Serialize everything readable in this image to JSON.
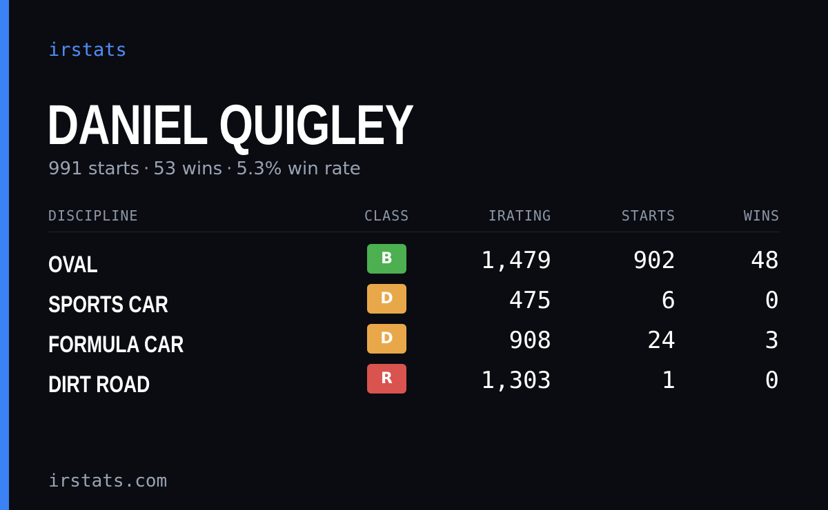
{
  "brand": "irstats",
  "driver": {
    "name": "DANIEL QUIGLEY",
    "summary": {
      "starts": "991 starts",
      "wins": "53 wins",
      "win_rate": "5.3% win rate",
      "separator": "·"
    }
  },
  "table": {
    "headers": {
      "discipline": "DISCIPLINE",
      "class": "CLASS",
      "irating": "IRATING",
      "starts": "STARTS",
      "wins": "WINS"
    },
    "rows": [
      {
        "discipline": "OVAL",
        "class": "B",
        "class_color": "#4caf50",
        "irating": "1,479",
        "starts": "902",
        "wins": "48"
      },
      {
        "discipline": "SPORTS CAR",
        "class": "D",
        "class_color": "#e8a84a",
        "irating": "475",
        "starts": "6",
        "wins": "0"
      },
      {
        "discipline": "FORMULA CAR",
        "class": "D",
        "class_color": "#e8a84a",
        "irating": "908",
        "starts": "24",
        "wins": "3"
      },
      {
        "discipline": "DIRT ROAD",
        "class": "R",
        "class_color": "#d9534f",
        "irating": "1,303",
        "starts": "1",
        "wins": "0"
      }
    ]
  },
  "footer": "irstats.com",
  "colors": {
    "accent": "#3b82f6",
    "brand_text": "#4f8ef7",
    "background": "#0a0c12"
  }
}
